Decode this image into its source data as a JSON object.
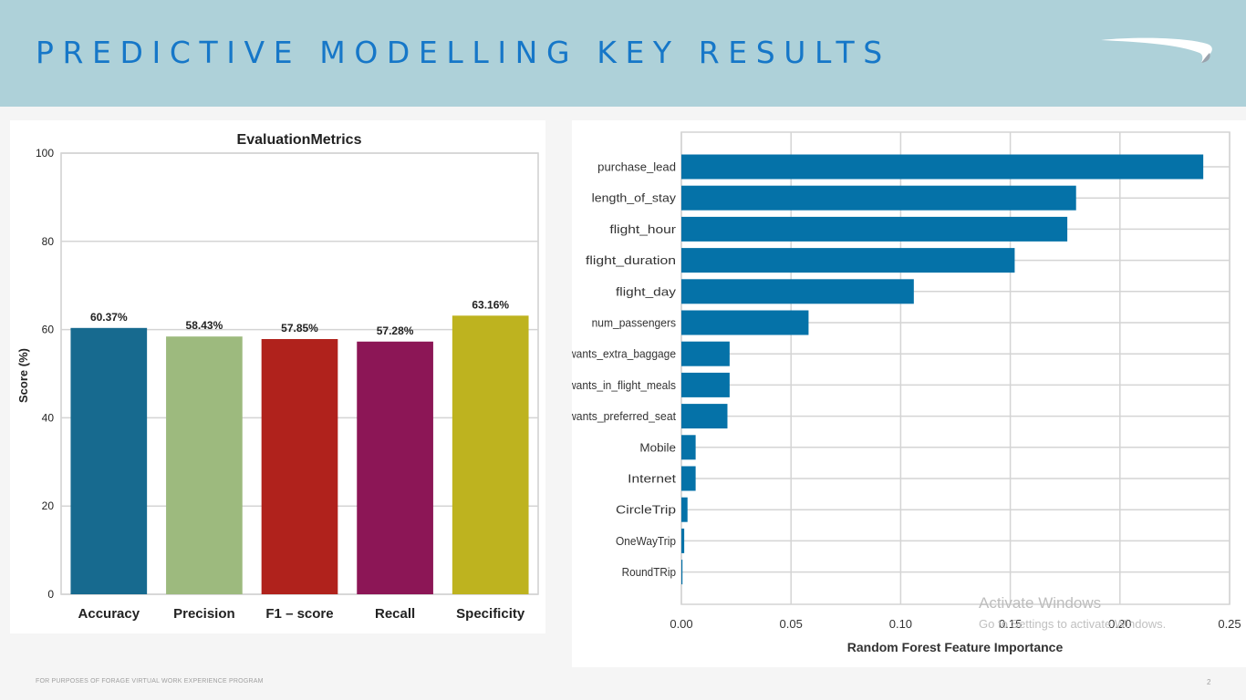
{
  "header": {
    "title": "PREDICTIVE MODELLING KEY RESULTS",
    "logo_icon": "speedmarque-logo-icon"
  },
  "colors": {
    "header_bg": "#aed1d9",
    "title": "#1677c8",
    "feature_bar": "#0572a8"
  },
  "chart_data": [
    {
      "type": "bar",
      "title": "EvaluationMetrics",
      "xlabel": "",
      "ylabel": "Score (%)",
      "ylim": [
        0,
        100
      ],
      "yticks": [
        0,
        20,
        40,
        60,
        80,
        100
      ],
      "grid": true,
      "categories": [
        "Accuracy",
        "Precision",
        "F1 – score",
        "Recall",
        "Specificity"
      ],
      "values": [
        60.37,
        58.43,
        57.85,
        57.28,
        63.16
      ],
      "data_labels": [
        "60.37%",
        "58.43%",
        "57.85%",
        "57.28%",
        "63.16%"
      ],
      "colors": [
        "#176a8f",
        "#9dba7e",
        "#b0221c",
        "#8c1656",
        "#beb31f"
      ]
    },
    {
      "type": "bar",
      "orientation": "horizontal",
      "title": "",
      "xlabel": "Random Forest Feature Importance",
      "ylabel": "",
      "xlim": [
        0,
        0.25
      ],
      "xticks": [
        0.0,
        0.05,
        0.1,
        0.15,
        0.2,
        0.25
      ],
      "xtick_labels": [
        "0.00",
        "0.05",
        "0.10",
        "0.15",
        "0.20",
        "0.25"
      ],
      "grid": true,
      "categories": [
        "purchase_lead",
        "length_of_stay",
        "flight_hour",
        "flight_duration",
        "flight_day",
        "num_passengers",
        "wants_extra_baggage",
        "wants_in_flight_meals",
        "wants_preferred_seat",
        "Mobile",
        "Internet",
        "CircleTrip",
        "OneWayTrip",
        "RoundTRip"
      ],
      "values": [
        0.238,
        0.18,
        0.176,
        0.152,
        0.106,
        0.058,
        0.022,
        0.022,
        0.021,
        0.0065,
        0.0065,
        0.0028,
        0.0013,
        0.0005
      ]
    }
  ],
  "watermark": {
    "line1": "Activate Windows",
    "line2": "Go to Settings to activate Windows."
  },
  "footer": {
    "text": "FOR PURPOSES OF FORAGE VIRTUAL WORK EXPERIENCE PROGRAM",
    "page_number": "2"
  }
}
